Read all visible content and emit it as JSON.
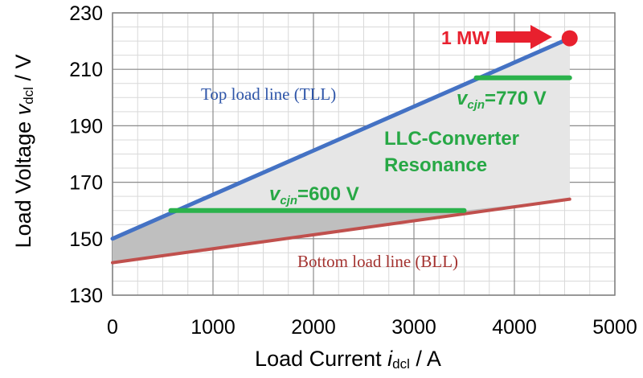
{
  "chart_data": {
    "type": "line",
    "xlabel": "Load Current",
    "xlabel_var": "i",
    "xlabel_sub": "dcl",
    "xlabel_unit": " / A",
    "ylabel": "Load Voltage",
    "ylabel_var": "v",
    "ylabel_sub": "dcl",
    "ylabel_unit": " / V",
    "xlim": [
      0,
      5000
    ],
    "ylim": [
      130,
      230
    ],
    "x_ticks": [
      "0",
      "1000",
      "2000",
      "3000",
      "4000",
      "5000"
    ],
    "y_ticks": [
      "130",
      "150",
      "170",
      "190",
      "210",
      "230"
    ],
    "grid": true,
    "series": [
      {
        "name": "Top load line (TLL)",
        "color": "#4472c4",
        "x": [
          0,
          4550
        ],
        "y": [
          150,
          221
        ]
      },
      {
        "name": "Bottom load line (BLL)",
        "color": "#c0504d",
        "x": [
          0,
          4550
        ],
        "y": [
          141.5,
          164
        ]
      },
      {
        "name": "vcjn=600 V",
        "color": "#2bb24c",
        "x": [
          580,
          3500
        ],
        "y": [
          160,
          160
        ]
      },
      {
        "name": "vcjn=770 V",
        "color": "#2bb24c",
        "x": [
          3620,
          4550
        ],
        "y": [
          207,
          207
        ]
      }
    ],
    "region_label_line1": "LLC-Converter",
    "region_label_line2": "Resonance",
    "point": {
      "x": 4550,
      "y": 221,
      "label": "1 MW",
      "color": "#e8202e"
    },
    "annotations": {
      "tll_label": "Top load line (TLL)",
      "bll_label": "Bottom load line (BLL)",
      "v600": {
        "var": "v",
        "sub": "cjn",
        "rest": "=600 V"
      },
      "v770": {
        "var": "v",
        "sub": "cjn",
        "rest": "=770 V"
      }
    }
  }
}
